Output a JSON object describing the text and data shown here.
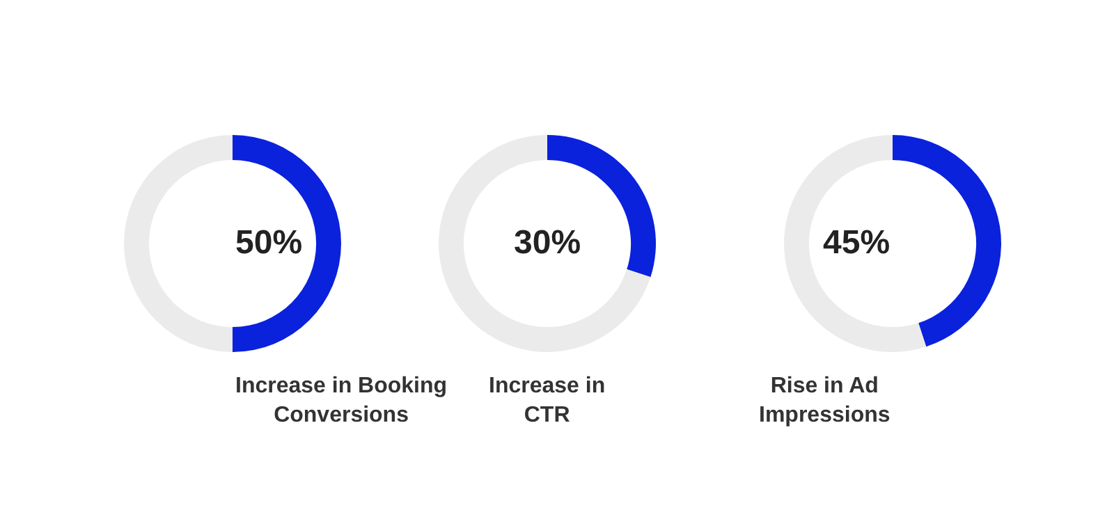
{
  "chart_data": [
    {
      "type": "donut",
      "title": "Increase in Booking Conversions",
      "categories": [
        null,
        null
      ],
      "values": [
        50,
        50
      ],
      "annotations": [
        "50%"
      ],
      "colors": [
        "#0a22dc",
        "#ebebeb"
      ]
    },
    {
      "type": "donut",
      "title": "Increase in CTR",
      "categories": [
        null,
        null
      ],
      "values": [
        30,
        70
      ],
      "annotations": [
        "30%"
      ],
      "colors": [
        "#0a22dc",
        "#ebebeb"
      ]
    },
    {
      "type": "donut",
      "title": "Rise in Ad Impressions",
      "categories": [
        null,
        null
      ],
      "values": [
        45,
        55
      ],
      "annotations": [
        "45%"
      ],
      "colors": [
        "#0a22dc",
        "#ebebeb"
      ]
    }
  ]
}
